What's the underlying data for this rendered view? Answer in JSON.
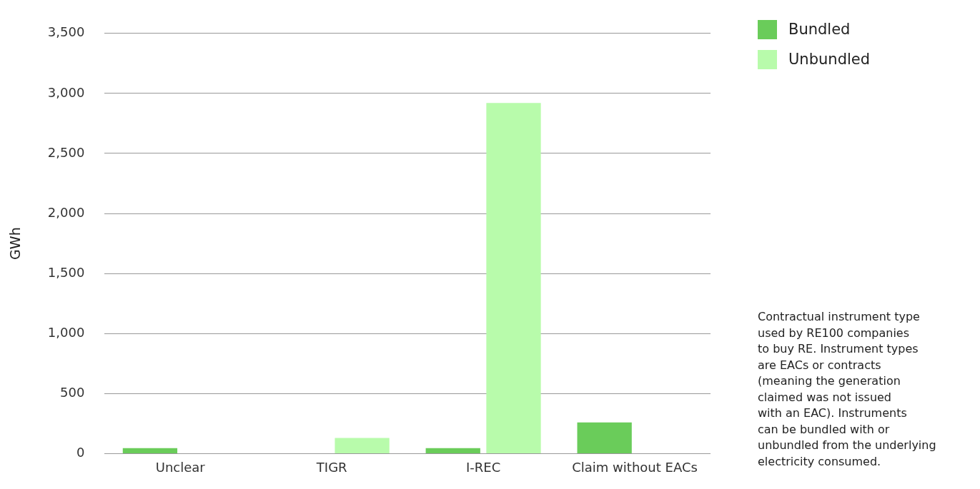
{
  "chart_data": {
    "type": "bar",
    "ylabel": "GWh",
    "categories": [
      "Unclear",
      "TIGR",
      "I-REC",
      "Claim without EACs"
    ],
    "series": [
      {
        "name": "Bundled",
        "color": "#6acc5a",
        "values": [
          45,
          null,
          45,
          260
        ]
      },
      {
        "name": "Unbundled",
        "color": "#b8fbab",
        "values": [
          null,
          130,
          2920,
          null
        ]
      }
    ],
    "ylim": [
      0,
      3500
    ],
    "yticks": [
      {
        "value": 0,
        "label": "0"
      },
      {
        "value": 500,
        "label": "500"
      },
      {
        "value": 1000,
        "label": "1,000"
      },
      {
        "value": 1500,
        "label": "1,500"
      },
      {
        "value": 2000,
        "label": "2,000"
      },
      {
        "value": 2500,
        "label": "2,500"
      },
      {
        "value": 3000,
        "label": "3,000"
      },
      {
        "value": 3500,
        "label": "3,500"
      }
    ],
    "grid": "y",
    "legend": "top right",
    "annotations": [
      "Contractual instrument type\nused by RE100 companies\nto buy RE. Instrument types\nare EACs or contracts\n(meaning the generation\nclaimed was not issued\nwith an EAC). Instruments\ncan be bundled with or\nunbundled from the underlying\nelectricity consumed."
    ]
  }
}
